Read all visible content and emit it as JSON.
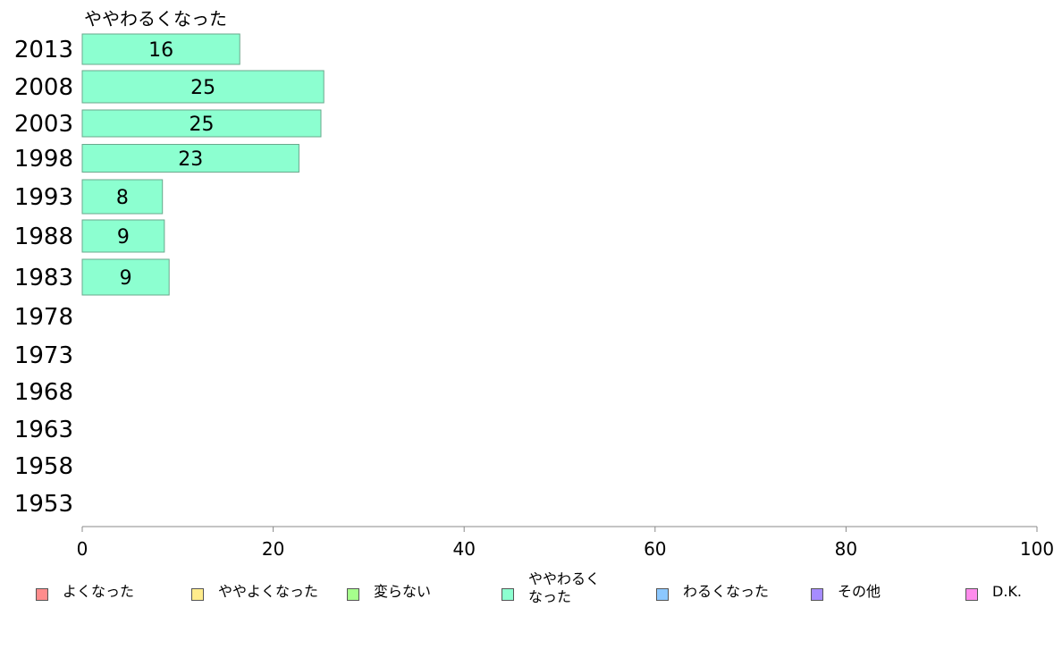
{
  "chart_data": {
    "type": "bar",
    "orientation": "horizontal",
    "series_title": "ややわるくなった",
    "categories": [
      "2013",
      "2008",
      "2003",
      "1998",
      "1993",
      "1988",
      "1983",
      "1978",
      "1973",
      "1968",
      "1963",
      "1958",
      "1953"
    ],
    "series": [
      {
        "name": "ややわるくなった",
        "values": [
          16.5,
          25.3,
          25.0,
          22.7,
          8.4,
          8.6,
          9.1,
          null,
          null,
          null,
          null,
          null,
          null
        ]
      }
    ],
    "data_labels": [
      "16",
      "25",
      "25",
      "23",
      "8",
      "9",
      "9",
      "",
      "",
      "",
      "",
      "",
      ""
    ],
    "xlim": [
      0,
      100
    ],
    "xticks": [
      "0",
      "20",
      "40",
      "60",
      "80",
      "100"
    ],
    "grid": false,
    "legend_position": "bottom",
    "bar_color": "#8cffd0",
    "legend": [
      {
        "label": "よくなった",
        "color": "#ff8c8c"
      },
      {
        "label": "ややよくなった",
        "color": "#ffec8c"
      },
      {
        "label": "変らない",
        "color": "#a6ff8c"
      },
      {
        "label": "ややわるく\nなった",
        "color": "#8cffd0"
      },
      {
        "label": "わるくなった",
        "color": "#8cc8ff"
      },
      {
        "label": "その他",
        "color": "#a68cff"
      },
      {
        "label": "D.K.",
        "color": "#ff8cec"
      }
    ]
  }
}
